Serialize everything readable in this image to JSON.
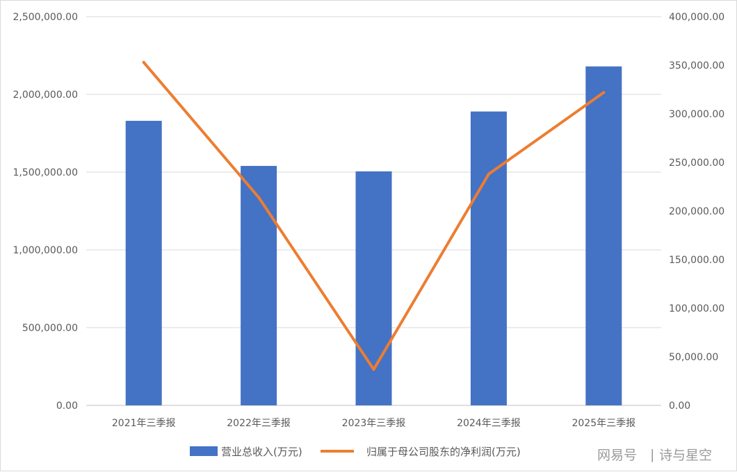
{
  "chart_data": {
    "type": "bar",
    "categories": [
      "2021年三季报",
      "2022年三季报",
      "2023年三季报",
      "2024年三季报",
      "2025年三季报"
    ],
    "series": [
      {
        "name": "营业总收入(万元)",
        "type": "bar",
        "axis": "left",
        "color": "#4472C4",
        "values": [
          1830000,
          1540000,
          1505000,
          1890000,
          2180000
        ]
      },
      {
        "name": "归属于母公司股东的净利润(万元)",
        "type": "line",
        "axis": "right",
        "color": "#ED7D31",
        "values": [
          353000,
          214000,
          37000,
          238000,
          322000
        ]
      }
    ],
    "y_left": {
      "ylim": [
        0,
        2500000
      ],
      "ticks": [
        "0.00",
        "500,000.00",
        "1,000,000.00",
        "1,500,000.00",
        "2,000,000.00",
        "2,500,000.00"
      ]
    },
    "y_right": {
      "ylim": [
        0,
        400000
      ],
      "ticks": [
        "0.00",
        "50,000.00",
        "100,000.00",
        "150,000.00",
        "200,000.00",
        "250,000.00",
        "300,000.00",
        "350,000.00",
        "400,000.00"
      ]
    },
    "grid": true,
    "legend_position": "bottom"
  },
  "watermark": {
    "icon_text": "网易号",
    "separator": "|",
    "author": "诗与星空"
  }
}
